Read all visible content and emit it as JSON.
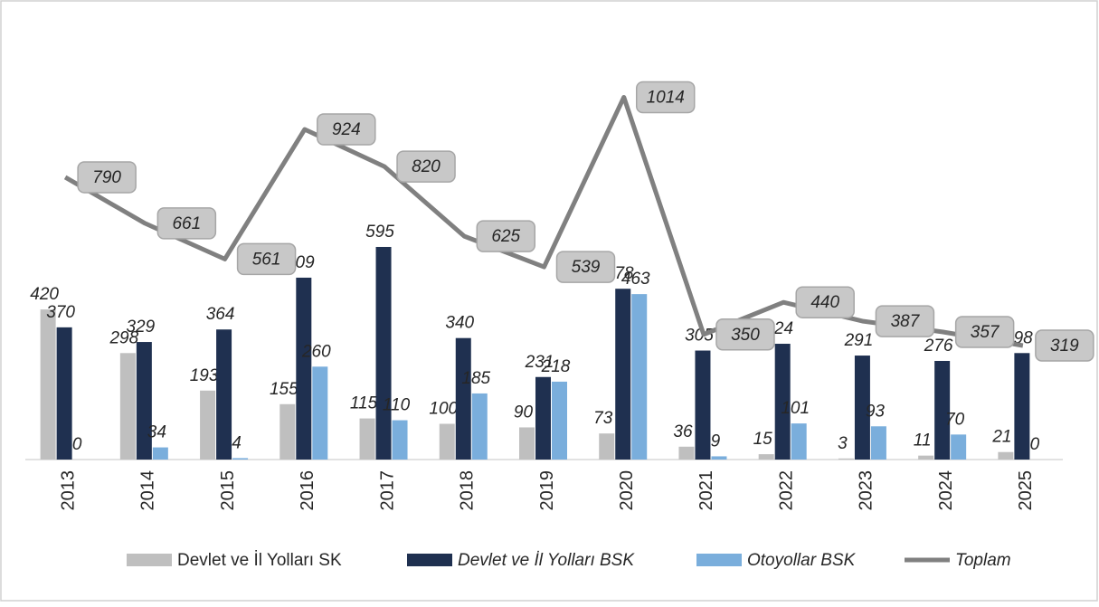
{
  "chart_data": {
    "type": "bar-line",
    "categories": [
      "2013",
      "2014",
      "2015",
      "2016",
      "2017",
      "2018",
      "2019",
      "2020",
      "2021",
      "2022",
      "2023",
      "2024",
      "2025"
    ],
    "series": [
      {
        "name": "Devlet ve İl Yolları SK",
        "type": "bar",
        "color": "#bfbfbf",
        "values": [
          420,
          298,
          193,
          155,
          115,
          100,
          90,
          73,
          36,
          15,
          3,
          11,
          21
        ]
      },
      {
        "name": "Devlet ve İl Yolları BSK",
        "type": "bar",
        "color": "#1f3050",
        "values": [
          370,
          329,
          364,
          509,
          595,
          340,
          231,
          478,
          305,
          324,
          291,
          276,
          298
        ]
      },
      {
        "name": "Otoyollar BSK",
        "type": "bar",
        "color": "#7aaedc",
        "values": [
          0,
          34,
          4,
          260,
          110,
          185,
          218,
          463,
          9,
          101,
          93,
          70,
          0
        ]
      },
      {
        "name": "Toplam",
        "type": "line",
        "color": "#808080",
        "values": [
          790,
          661,
          561,
          924,
          820,
          625,
          539,
          1014,
          350,
          440,
          387,
          357,
          319
        ]
      }
    ],
    "ylim": [
      0,
      1200
    ]
  }
}
